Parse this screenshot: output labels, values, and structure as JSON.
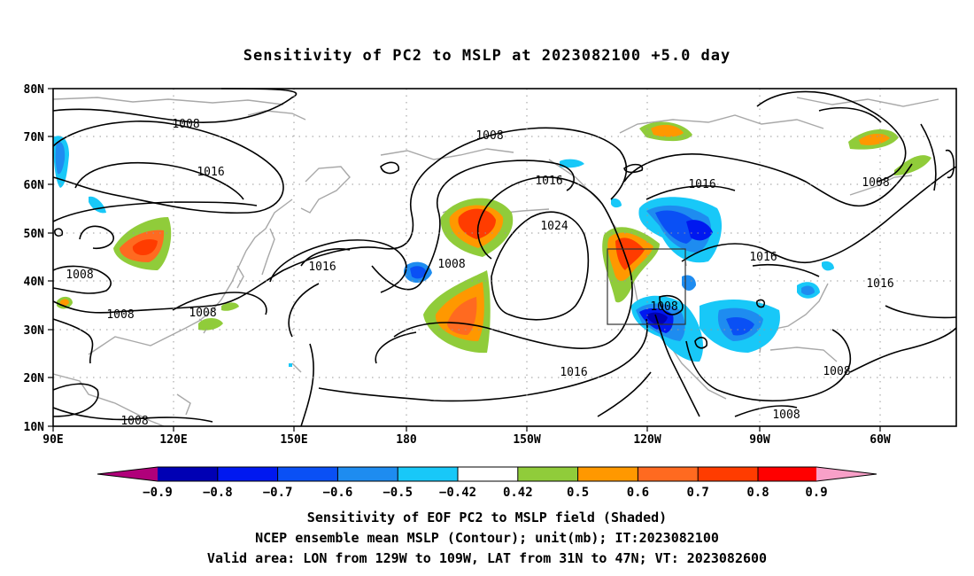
{
  "title": "Sensitivity of PC2 to MSLP at 2023082100 +5.0 day",
  "map": {
    "lon_ticks": [
      "90E",
      "120E",
      "150E",
      "180",
      "150W",
      "120W",
      "90W",
      "60W"
    ],
    "lat_ticks": [
      "80N",
      "70N",
      "60N",
      "50N",
      "40N",
      "30N",
      "20N",
      "10N"
    ],
    "contour_labels": [
      "1008",
      "1016",
      "1008",
      "1016",
      "1024",
      "1008",
      "1016",
      "1016",
      "1008",
      "1008",
      "1008",
      "1008",
      "1016",
      "1016",
      "1008",
      "1008",
      "1008",
      "1008"
    ],
    "valid_box": {
      "lon_from": "129W",
      "lon_to": "109W",
      "lat_from": "31N",
      "lat_to": "47N"
    }
  },
  "colorbar": {
    "labels": [
      "−0.9",
      "−0.8",
      "−0.7",
      "−0.6",
      "−0.5",
      "−0.42",
      "0.42",
      "0.5",
      "0.6",
      "0.7",
      "0.8",
      "0.9"
    ],
    "colors": [
      "#b0007a",
      "#0000b4",
      "#0018f0",
      "#0a50f5",
      "#1e8cf0",
      "#18c8f8",
      "#ffffff",
      "#90cc3a",
      "#ff9800",
      "#ff6a20",
      "#ff3c00",
      "#ff0000",
      "#f8a0c8"
    ]
  },
  "footer": {
    "line1": "Sensitivity of EOF PC2 to MSLP field (Shaded)",
    "line2": "NCEP ensemble mean MSLP (Contour); unit(mb); IT:2023082100",
    "line3": "Valid area: LON from 129W to 109W, LAT from 31N to 47N; VT: 2023082600"
  }
}
